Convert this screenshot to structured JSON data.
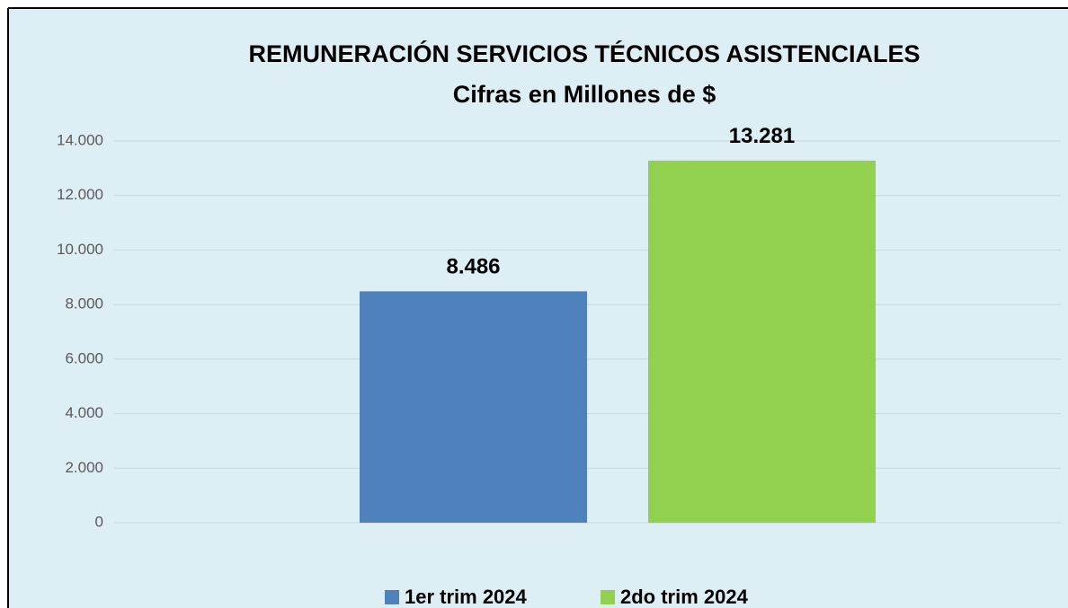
{
  "chart_data": {
    "type": "bar",
    "title": "REMUNERACIÓN SERVICIOS TÉCNICOS ASISTENCIALES",
    "subtitle": "Cifras en Millones de $",
    "categories": [
      null
    ],
    "series": [
      {
        "name": "1er trim 2024",
        "color": "#4f81bd",
        "values": [
          8486
        ],
        "value_labels": [
          "8.486"
        ]
      },
      {
        "name": "2do trim 2024",
        "color": "#92d050",
        "values": [
          13281
        ],
        "value_labels": [
          "13.281"
        ]
      }
    ],
    "ylim": [
      0,
      14000
    ],
    "yticks": [
      0,
      {
        "value": 2000,
        "label": "2.000"
      },
      {
        "value": 4000,
        "label": "4.000"
      },
      {
        "value": 6000,
        "label": "6.000"
      },
      {
        "value": 8000,
        "label": "8.000"
      },
      {
        "value": 10000,
        "label": "10.000"
      },
      {
        "value": 12000,
        "label": "12.000"
      },
      {
        "value": 14000,
        "label": "14.000"
      }
    ],
    "grid": true,
    "legend": "bottom"
  }
}
